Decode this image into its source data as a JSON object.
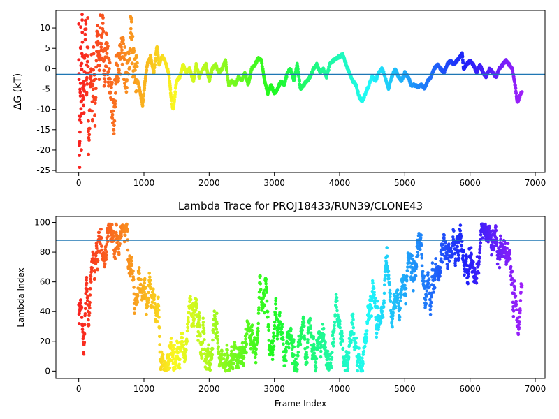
{
  "chart_data": [
    {
      "type": "scatter",
      "title": "",
      "xlabel": "",
      "ylabel": "ΔG (kT)",
      "xlim": [
        -350,
        7150
      ],
      "ylim": [
        -25.5,
        14.3
      ],
      "xticks": [
        0,
        1000,
        2000,
        3000,
        4000,
        5000,
        6000,
        7000
      ],
      "yticks": [
        -25,
        -20,
        -15,
        -10,
        -5,
        0,
        5,
        10
      ],
      "hline": -1.4,
      "hline_color": "#1f77b4",
      "colormap": "rainbow (red → violet with frame index)",
      "grid": false,
      "legend": "none",
      "series_points": [
        [
          0,
          10
        ],
        [
          10,
          -25
        ],
        [
          20,
          -10
        ],
        [
          30,
          6
        ],
        [
          40,
          -17
        ],
        [
          50,
          13.5
        ],
        [
          60,
          -2
        ],
        [
          80,
          -9
        ],
        [
          90,
          4
        ],
        [
          110,
          12
        ],
        [
          120,
          -6
        ],
        [
          140,
          9
        ],
        [
          150,
          -20
        ],
        [
          170,
          -8
        ],
        [
          190,
          2
        ],
        [
          210,
          -12
        ],
        [
          230,
          5
        ],
        [
          250,
          -15
        ],
        [
          270,
          3
        ],
        [
          290,
          7
        ],
        [
          310,
          -1
        ],
        [
          330,
          10
        ],
        [
          350,
          2
        ],
        [
          370,
          13
        ],
        [
          390,
          -4
        ],
        [
          420,
          6
        ],
        [
          450,
          1
        ],
        [
          480,
          -2
        ],
        [
          510,
          -8
        ],
        [
          540,
          -11
        ],
        [
          580,
          0
        ],
        [
          620,
          2
        ],
        [
          680,
          3
        ],
        [
          740,
          -2
        ],
        [
          800,
          9
        ],
        [
          830,
          3
        ],
        [
          880,
          -1
        ],
        [
          930,
          -5
        ],
        [
          980,
          -9
        ],
        [
          1010,
          -4
        ],
        [
          1050,
          1
        ],
        [
          1100,
          3
        ],
        [
          1150,
          -1
        ],
        [
          1200,
          5.5
        ],
        [
          1230,
          1
        ],
        [
          1280,
          3
        ],
        [
          1320,
          2
        ],
        [
          1380,
          -1
        ],
        [
          1430,
          -9
        ],
        [
          1450,
          -10
        ],
        [
          1500,
          -3
        ],
        [
          1550,
          -2
        ],
        [
          1600,
          1
        ],
        [
          1650,
          -1
        ],
        [
          1700,
          0
        ],
        [
          1760,
          -3
        ],
        [
          1800,
          1
        ],
        [
          1850,
          -2
        ],
        [
          1900,
          0
        ],
        [
          1950,
          1
        ],
        [
          2000,
          -3
        ],
        [
          2050,
          0
        ],
        [
          2100,
          1
        ],
        [
          2150,
          -1
        ],
        [
          2200,
          0
        ],
        [
          2250,
          2
        ],
        [
          2300,
          -4
        ],
        [
          2350,
          -3
        ],
        [
          2400,
          -4
        ],
        [
          2450,
          -2
        ],
        [
          2500,
          -3
        ],
        [
          2550,
          -1
        ],
        [
          2600,
          -4
        ],
        [
          2650,
          0
        ],
        [
          2700,
          1
        ],
        [
          2750,
          2.5
        ],
        [
          2800,
          2
        ],
        [
          2850,
          -3
        ],
        [
          2900,
          -6
        ],
        [
          2950,
          -4
        ],
        [
          3000,
          -6
        ],
        [
          3050,
          -5
        ],
        [
          3100,
          -3
        ],
        [
          3150,
          -4
        ],
        [
          3200,
          -1
        ],
        [
          3250,
          0
        ],
        [
          3300,
          -3
        ],
        [
          3350,
          1
        ],
        [
          3400,
          -5
        ],
        [
          3450,
          -4
        ],
        [
          3500,
          -3
        ],
        [
          3550,
          -2
        ],
        [
          3600,
          0
        ],
        [
          3650,
          1
        ],
        [
          3700,
          -1
        ],
        [
          3750,
          0
        ],
        [
          3800,
          -2
        ],
        [
          3850,
          1
        ],
        [
          3900,
          2
        ],
        [
          3950,
          2.5
        ],
        [
          4000,
          3
        ],
        [
          4050,
          3.5
        ],
        [
          4100,
          1
        ],
        [
          4150,
          -1
        ],
        [
          4200,
          -3
        ],
        [
          4250,
          -4
        ],
        [
          4300,
          -7
        ],
        [
          4350,
          -8
        ],
        [
          4400,
          -6
        ],
        [
          4450,
          -4
        ],
        [
          4500,
          -2
        ],
        [
          4550,
          -3
        ],
        [
          4600,
          -1
        ],
        [
          4650,
          0
        ],
        [
          4700,
          -2
        ],
        [
          4750,
          -5
        ],
        [
          4800,
          -2
        ],
        [
          4850,
          0
        ],
        [
          4900,
          -2
        ],
        [
          4950,
          -3
        ],
        [
          5000,
          -1
        ],
        [
          5050,
          -2
        ],
        [
          5100,
          -4
        ],
        [
          5150,
          -4
        ],
        [
          5200,
          -4.5
        ],
        [
          5250,
          -4
        ],
        [
          5300,
          -5
        ],
        [
          5350,
          -3
        ],
        [
          5400,
          -2
        ],
        [
          5450,
          0
        ],
        [
          5500,
          1
        ],
        [
          5550,
          0
        ],
        [
          5600,
          -1
        ],
        [
          5650,
          1
        ],
        [
          5700,
          2
        ],
        [
          5750,
          1
        ],
        [
          5800,
          2
        ],
        [
          5850,
          3
        ],
        [
          5880,
          4
        ],
        [
          5900,
          0
        ],
        [
          5950,
          1
        ],
        [
          6000,
          2
        ],
        [
          6050,
          1
        ],
        [
          6100,
          -1
        ],
        [
          6150,
          1
        ],
        [
          6200,
          -1
        ],
        [
          6250,
          -2
        ],
        [
          6300,
          0
        ],
        [
          6350,
          -1
        ],
        [
          6400,
          -2
        ],
        [
          6450,
          0
        ],
        [
          6500,
          1
        ],
        [
          6550,
          2
        ],
        [
          6600,
          1
        ],
        [
          6650,
          0
        ],
        [
          6700,
          -5
        ],
        [
          6720,
          -8
        ],
        [
          6740,
          -8
        ],
        [
          6760,
          -7
        ],
        [
          6780,
          -6
        ],
        [
          6800,
          -5.5
        ]
      ]
    },
    {
      "type": "scatter",
      "title": "Lambda Trace for PROJ18433/RUN39/CLONE43",
      "xlabel": "Frame Index",
      "ylabel": "Lambda Index",
      "xlim": [
        -350,
        7150
      ],
      "ylim": [
        -5,
        104
      ],
      "xticks": [
        0,
        1000,
        2000,
        3000,
        4000,
        5000,
        6000,
        7000
      ],
      "yticks": [
        0,
        20,
        40,
        60,
        80,
        100
      ],
      "hline": 88,
      "hline_color": "#1f77b4",
      "colormap": "rainbow (red → violet with frame index)",
      "grid": false,
      "legend": "none",
      "frame_range": [
        0,
        6800
      ],
      "lambda_range": [
        0,
        99
      ]
    }
  ]
}
